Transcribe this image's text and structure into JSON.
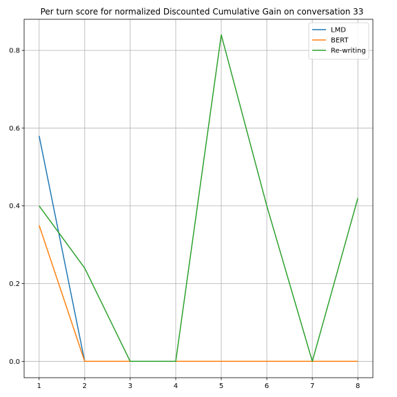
{
  "chart_data": {
    "type": "line",
    "title": "Per turn score for normalized Discounted Cumulative Gain on conversation 33",
    "xlabel": "",
    "ylabel": "",
    "x": [
      1,
      2,
      3,
      4,
      5,
      6,
      7,
      8
    ],
    "xlim": [
      0.67,
      8.33
    ],
    "ylim": [
      -0.042,
      0.88
    ],
    "xticks": [
      "1",
      "2",
      "3",
      "4",
      "5",
      "6",
      "7",
      "8"
    ],
    "yticks": [
      "0.0",
      "0.2",
      "0.4",
      "0.6",
      "0.8"
    ],
    "grid": true,
    "legend_position": "top-right",
    "series": [
      {
        "name": "LMD",
        "color": "#1f77b4",
        "values": [
          0.58,
          0,
          0,
          0,
          0,
          0,
          0,
          0
        ]
      },
      {
        "name": "BERT",
        "color": "#ff7f0e",
        "values": [
          0.35,
          0,
          0,
          0,
          0,
          0,
          0,
          0
        ]
      },
      {
        "name": "Re-writing",
        "color": "#2ca02c",
        "values": [
          0.4,
          0.24,
          0,
          0,
          0.84,
          0.4,
          0,
          0.42
        ]
      }
    ]
  }
}
